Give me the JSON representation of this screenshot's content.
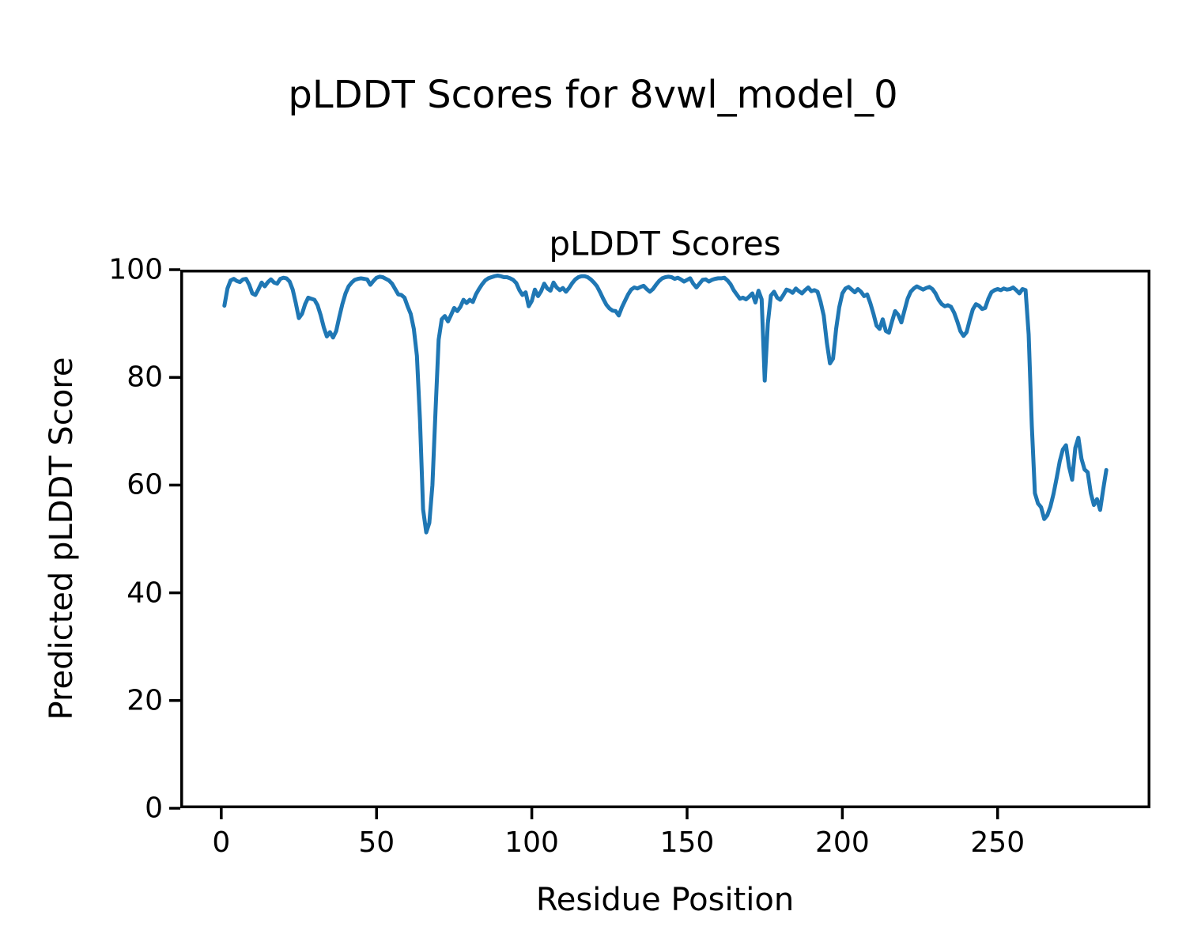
{
  "figure": {
    "suptitle": "pLDDT Scores for 8vwl_model_0"
  },
  "chart_data": {
    "type": "line",
    "title": "pLDDT Scores",
    "xlabel": "Residue Position",
    "ylabel": "Predicted pLDDT Score",
    "xlim": [
      -13.2,
      299.2
    ],
    "ylim": [
      0,
      100
    ],
    "grid": false,
    "legend": "none",
    "x_ticks": [
      0,
      50,
      100,
      150,
      200,
      250
    ],
    "x_tick_labels": [
      "0",
      "50",
      "100",
      "150",
      "200",
      "250"
    ],
    "y_ticks": [
      0,
      20,
      40,
      60,
      80,
      100
    ],
    "y_tick_labels": [
      "0",
      "20",
      "40",
      "60",
      "80",
      "100"
    ],
    "line_color": "#1f77b4",
    "axis_color": "#000000",
    "series": [
      {
        "name": "pLDDT",
        "x_start": 1,
        "x_step": 1,
        "y": [
          93.3,
          96.5,
          98.0,
          98.3,
          97.9,
          97.7,
          98.2,
          98.3,
          97.2,
          95.6,
          95.3,
          96.4,
          97.6,
          96.9,
          97.7,
          98.2,
          97.6,
          97.4,
          98.3,
          98.5,
          98.4,
          97.8,
          96.3,
          93.8,
          91.0,
          91.8,
          93.6,
          94.8,
          94.6,
          94.4,
          93.4,
          91.6,
          89.3,
          87.6,
          88.4,
          87.4,
          88.6,
          91.2,
          93.6,
          95.6,
          96.9,
          97.6,
          98.1,
          98.3,
          98.4,
          98.3,
          98.2,
          97.2,
          97.9,
          98.5,
          98.7,
          98.6,
          98.3,
          98.0,
          97.4,
          96.4,
          95.4,
          95.3,
          94.8,
          93.2,
          91.8,
          89.0,
          84.0,
          72.0,
          55.5,
          51.2,
          53.0,
          60.0,
          74.0,
          87.0,
          90.8,
          91.4,
          90.4,
          91.6,
          92.9,
          92.3,
          93.1,
          94.4,
          93.8,
          94.4,
          94.0,
          95.4,
          96.4,
          97.3,
          98.0,
          98.4,
          98.6,
          98.8,
          98.9,
          98.8,
          98.6,
          98.6,
          98.4,
          98.1,
          97.5,
          96.2,
          95.3,
          95.8,
          93.2,
          94.2,
          96.3,
          95.1,
          96.0,
          97.4,
          96.5,
          96.1,
          97.6,
          96.7,
          96.2,
          96.6,
          95.9,
          96.6,
          97.5,
          98.2,
          98.6,
          98.8,
          98.8,
          98.6,
          98.2,
          97.6,
          96.9,
          95.8,
          94.6,
          93.5,
          92.8,
          92.4,
          92.3,
          91.5,
          93.0,
          94.2,
          95.4,
          96.3,
          96.7,
          96.5,
          96.8,
          97.0,
          96.4,
          95.9,
          96.4,
          97.2,
          97.9,
          98.4,
          98.6,
          98.7,
          98.6,
          98.3,
          98.5,
          98.2,
          97.8,
          98.1,
          98.4,
          97.4,
          96.7,
          97.4,
          98.1,
          98.2,
          97.8,
          98.1,
          98.3,
          98.4,
          98.4,
          98.5,
          98.0,
          97.3,
          96.2,
          95.4,
          94.6,
          94.8,
          94.5,
          95.0,
          95.6,
          93.9,
          96.1,
          94.5,
          79.4,
          90.0,
          95.2,
          95.9,
          94.8,
          94.4,
          95.3,
          96.3,
          96.1,
          95.7,
          96.5,
          96.0,
          95.6,
          96.2,
          96.7,
          96.0,
          96.2,
          95.9,
          94.0,
          91.5,
          86.5,
          82.6,
          83.5,
          89.0,
          93.0,
          95.6,
          96.5,
          96.8,
          96.3,
          95.8,
          96.4,
          95.9,
          95.1,
          95.4,
          93.8,
          91.8,
          89.6,
          89.0,
          90.8,
          88.6,
          88.3,
          90.4,
          92.3,
          91.6,
          90.2,
          92.4,
          94.6,
          95.9,
          96.5,
          96.9,
          96.6,
          96.3,
          96.6,
          96.8,
          96.4,
          95.6,
          94.4,
          93.6,
          93.2,
          93.4,
          93.1,
          92.0,
          90.4,
          88.6,
          87.7,
          88.4,
          90.6,
          92.6,
          93.6,
          93.3,
          92.7,
          92.9,
          94.6,
          95.8,
          96.2,
          96.4,
          96.2,
          96.5,
          96.3,
          96.4,
          96.7,
          96.2,
          95.6,
          96.4,
          96.2,
          88.0,
          71.0,
          58.5,
          56.6,
          55.9,
          53.7,
          54.4,
          56.0,
          58.4,
          61.3,
          64.4,
          66.6,
          67.4,
          63.4,
          61.0,
          66.9,
          68.8,
          64.9,
          62.9,
          62.4,
          58.5,
          56.3,
          57.4,
          55.4,
          59.2,
          62.8
        ]
      }
    ]
  }
}
